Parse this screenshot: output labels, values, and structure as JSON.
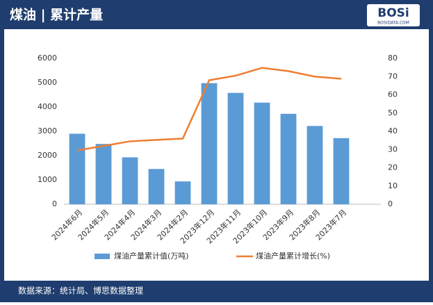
{
  "chart_data": {
    "type": "bar",
    "title": "煤油 | 累计产量",
    "logo": "BOSi",
    "logo_subtitle": "BOSIDATA.COM",
    "source": "数据来源：统计局、博思数据整理",
    "categories": [
      "2024年6月",
      "2024年5月",
      "2024年4月",
      "2024年3月",
      "2024年2月",
      "2023年12月",
      "2023年11月",
      "2023年10月",
      "2023年9月",
      "2023年8月",
      "2023年7月",
      null
    ],
    "series": [
      {
        "name": "煤油产量累计值(万吨)",
        "color": "#5b9bd5",
        "type": "bar",
        "values": [
          2900,
          2480,
          1930,
          1450,
          940,
          4980,
          4580,
          4180,
          3720,
          3220,
          2720,
          null
        ]
      },
      {
        "name": "煤油产量累计增长(%)",
        "color": "#ed7d31",
        "type": "line",
        "axis": "y2",
        "values": [
          29.5,
          32,
          34.5,
          35.3,
          36,
          68,
          70.5,
          74.8,
          73,
          70,
          68.8,
          null
        ]
      }
    ],
    "ylim": [
      0,
      6000
    ],
    "yticks": [
      0,
      1000,
      2000,
      3000,
      4000,
      5000,
      6000
    ],
    "y2lim": [
      0,
      80
    ],
    "y2ticks": [
      0,
      10,
      20,
      30,
      40,
      50,
      60,
      70,
      80
    ],
    "grid": false
  }
}
